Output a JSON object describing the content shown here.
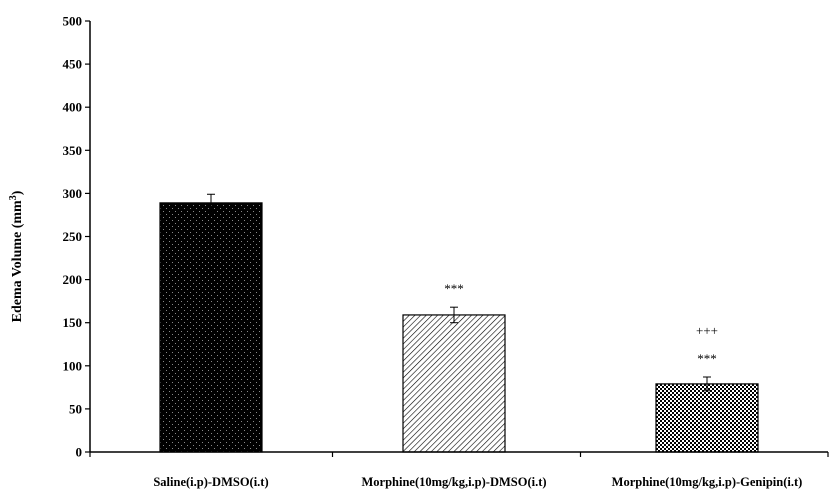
{
  "chart_data": {
    "type": "bar",
    "title": "",
    "xlabel": "",
    "ylabel": "Edema Volume (mm",
    "ylabel_superscript": "3",
    "ylabel_suffix": ")",
    "ylim": [
      0,
      500
    ],
    "yticks": [
      0,
      50,
      100,
      150,
      200,
      250,
      300,
      350,
      400,
      450,
      500
    ],
    "grid": false,
    "categories": [
      "Saline(i.p)-DMSO(i.t)",
      "Morphine(10mg/kg,i.p)-DMSO(i.t)",
      "Morphine(10mg/kg,i.p)-Genipin(i.t)"
    ],
    "values": [
      289,
      159,
      79
    ],
    "errors": [
      10,
      9,
      8
    ],
    "patterns": [
      "dotted-black",
      "diagonal-hatch",
      "crosshatch"
    ],
    "annotations": [
      [],
      [
        "***"
      ],
      [
        "***",
        "+++"
      ]
    ]
  }
}
